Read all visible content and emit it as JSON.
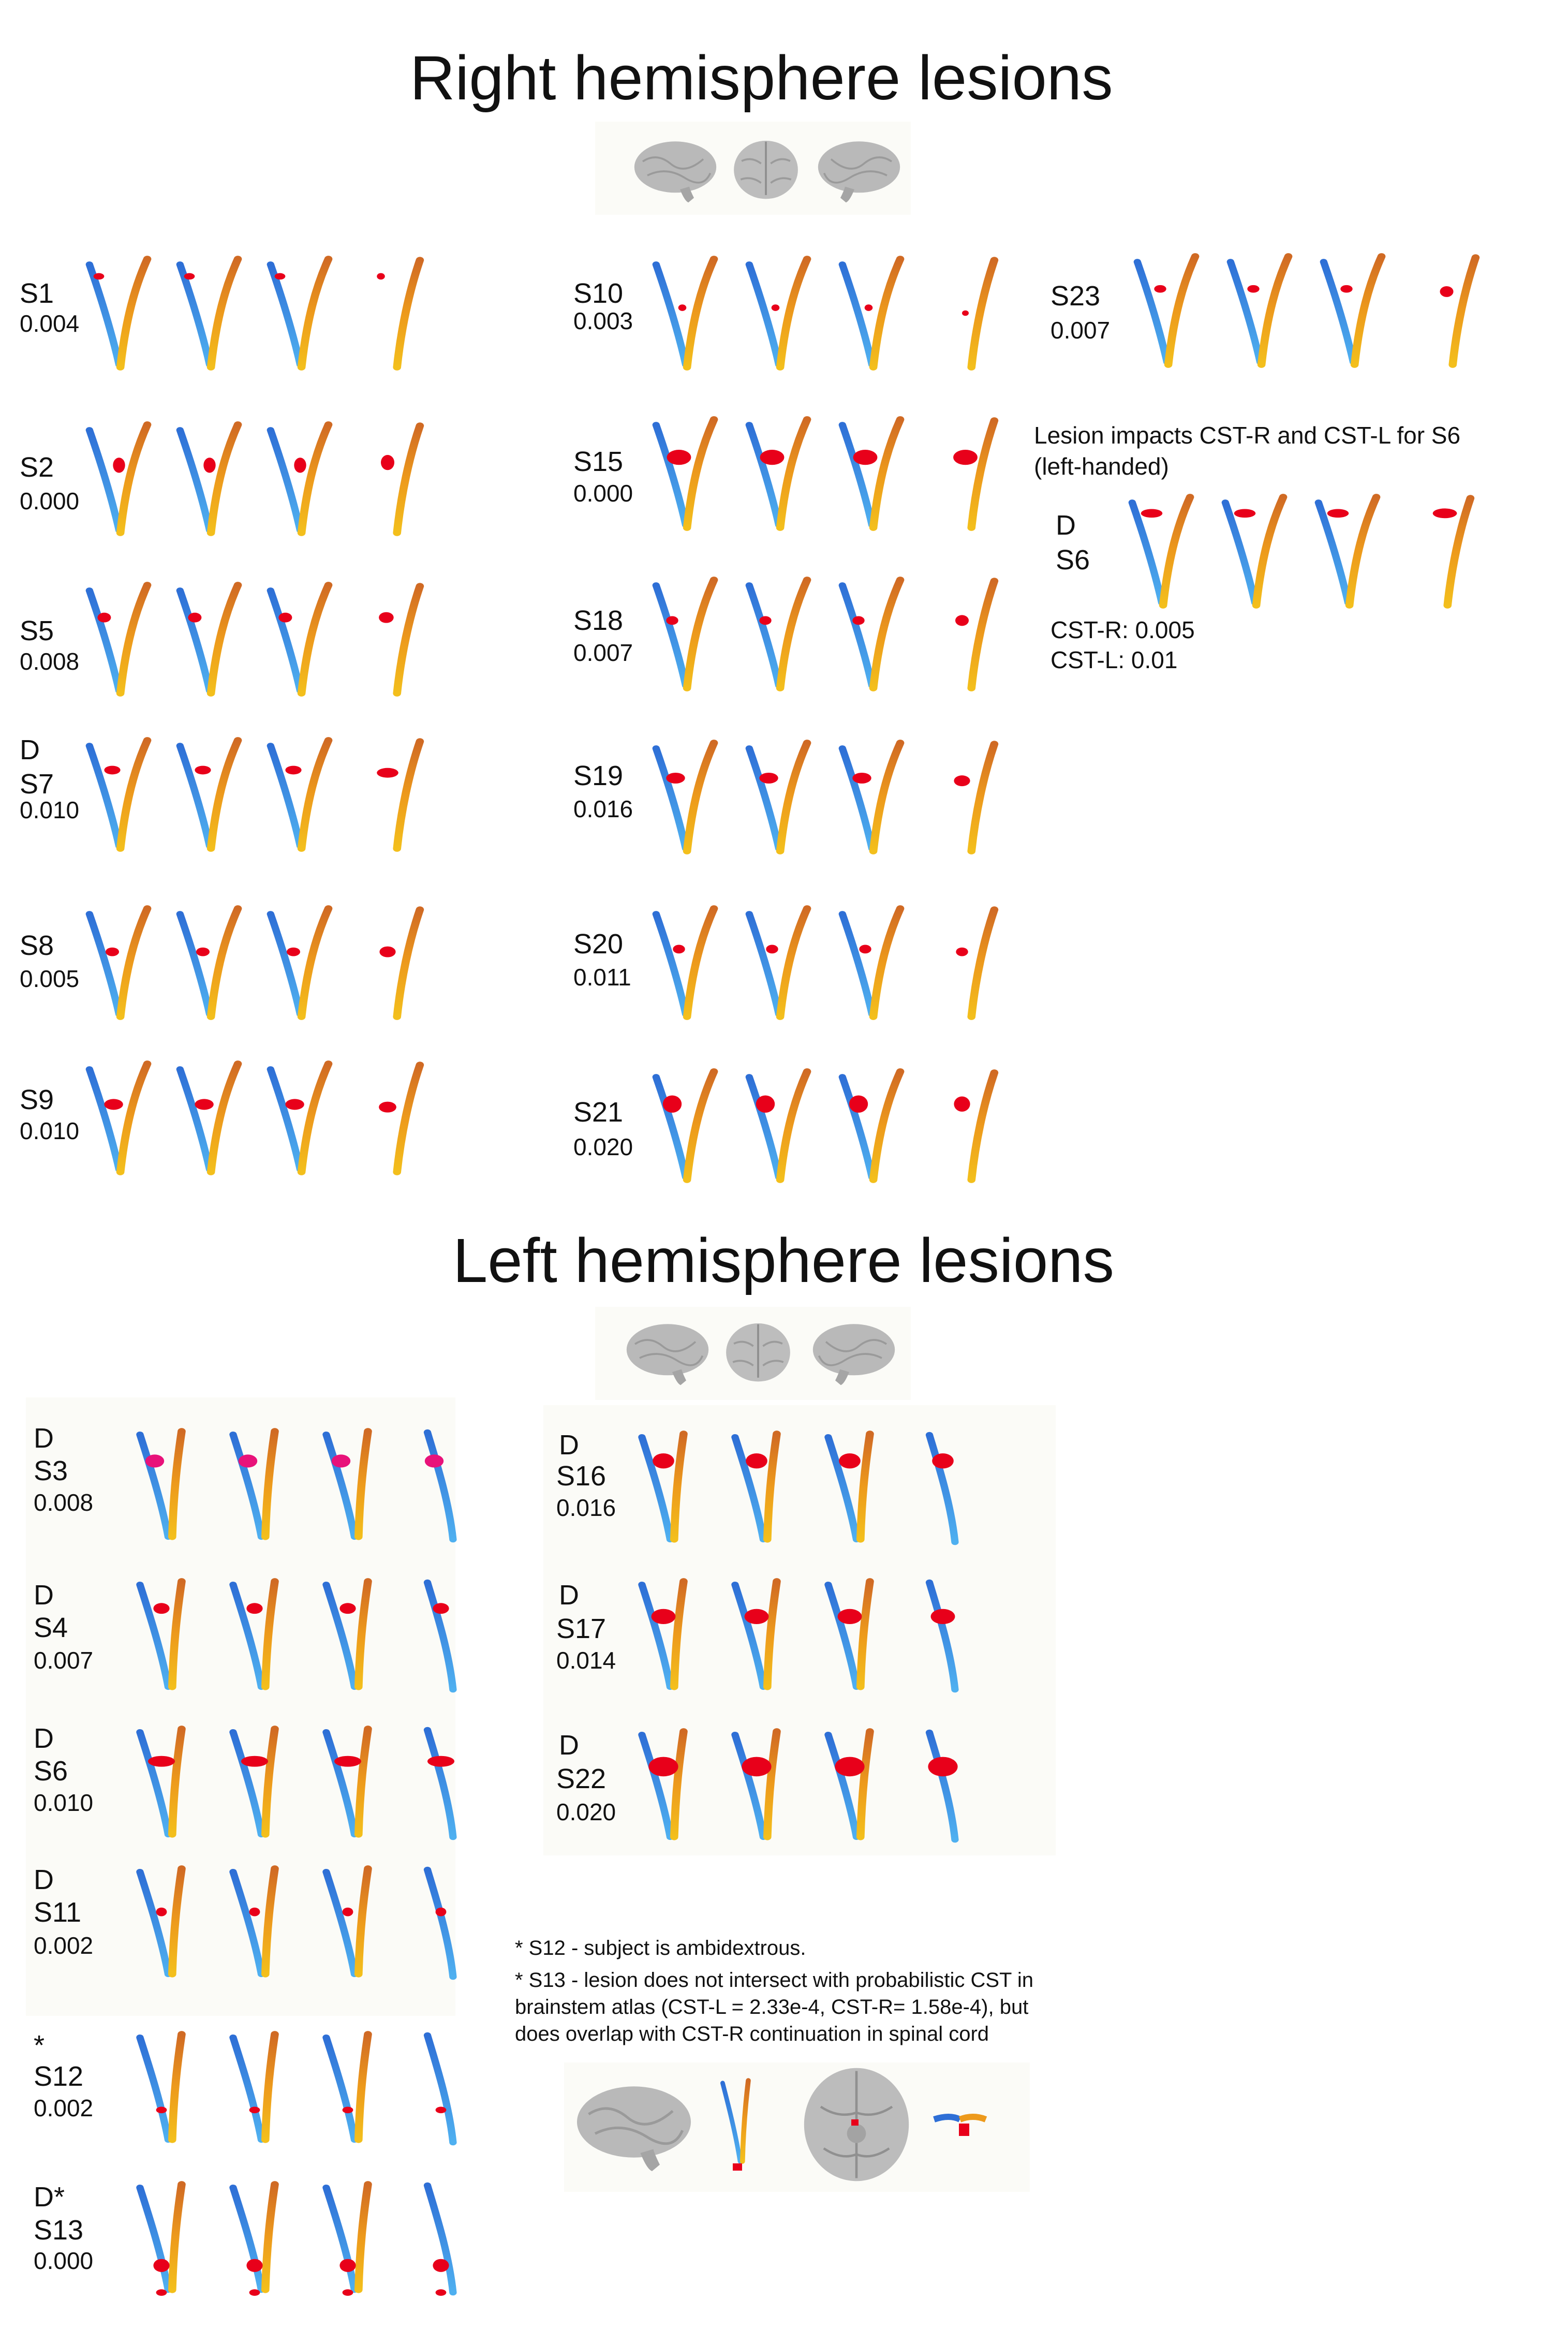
{
  "right_section": {
    "title": "Right hemisphere lesions",
    "subjects": [
      {
        "id": "S1",
        "value": "0.004",
        "prefix": ""
      },
      {
        "id": "S2",
        "value": "0.000",
        "prefix": ""
      },
      {
        "id": "S5",
        "value": "0.008",
        "prefix": ""
      },
      {
        "id": "S7",
        "value": "0.010",
        "prefix": "D"
      },
      {
        "id": "S8",
        "value": "0.005",
        "prefix": ""
      },
      {
        "id": "S9",
        "value": "0.010",
        "prefix": ""
      },
      {
        "id": "S10",
        "value": "0.003",
        "prefix": ""
      },
      {
        "id": "S15",
        "value": "0.000",
        "prefix": ""
      },
      {
        "id": "S18",
        "value": "0.007",
        "prefix": ""
      },
      {
        "id": "S19",
        "value": "0.016",
        "prefix": ""
      },
      {
        "id": "S20",
        "value": "0.011",
        "prefix": ""
      },
      {
        "id": "S21",
        "value": "0.020",
        "prefix": ""
      },
      {
        "id": "S23",
        "value": "0.007",
        "prefix": ""
      }
    ],
    "s6_note": {
      "line1": "Lesion impacts CST-R and CST-L for S6",
      "line2": "(left-handed)",
      "prefix": "D",
      "id": "S6",
      "cst_r": "CST-R: 0.005",
      "cst_l": "CST-L: 0.01"
    }
  },
  "left_section": {
    "title": "Left hemisphere lesions",
    "subjects": [
      {
        "id": "S3",
        "value": "0.008",
        "prefix": "D"
      },
      {
        "id": "S4",
        "value": "0.007",
        "prefix": "D"
      },
      {
        "id": "S6",
        "value": "0.010",
        "prefix": "D"
      },
      {
        "id": "S11",
        "value": "0.002",
        "prefix": "D"
      },
      {
        "id": "S12",
        "value": "0.002",
        "prefix": "*"
      },
      {
        "id": "S13",
        "value": "0.000",
        "prefix": "D*"
      },
      {
        "id": "S16",
        "value": "0.016",
        "prefix": "D"
      },
      {
        "id": "S17",
        "value": "0.014",
        "prefix": "D"
      },
      {
        "id": "S22",
        "value": "0.020",
        "prefix": "D"
      }
    ],
    "footnotes": {
      "s12": "* S12 - subject is ambidextrous.",
      "s13_line1": "* S13 - lesion does not intersect with probabilistic CST in",
      "s13_line2": "brainstem atlas (CST-L = 2.33e-4, CST-R= 1.58e-4), but",
      "s13_line3": "does overlap with CST-R continuation in spinal cord"
    }
  },
  "colors": {
    "cst_right": "#e8951e",
    "cst_left": "#3b8fe0",
    "lesion": "#e8001a",
    "lesion_magenta": "#e8127a",
    "brain": "#b9b9b9"
  },
  "icons": [
    "brain-lateral-icon",
    "brain-frontal-icon",
    "brain-posterior-icon",
    "tract-icon"
  ]
}
